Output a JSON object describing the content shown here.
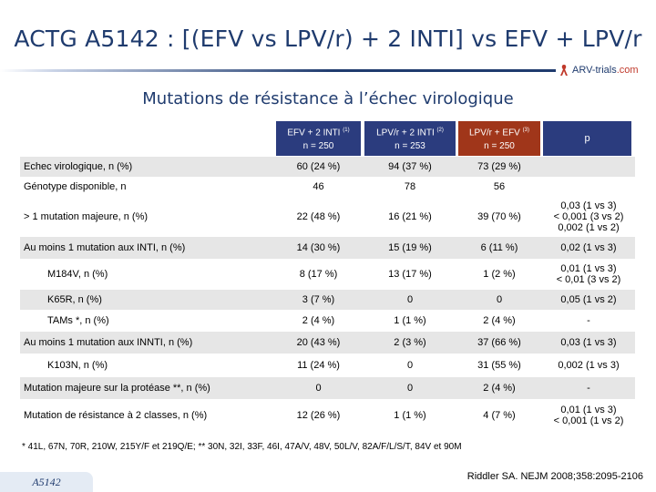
{
  "title": "ACTG A5142 : [(EFV vs LPV/r) + 2 INTI] vs EFV + LPV/r",
  "brand": {
    "name": "ARV-trials",
    "suffix": ".com"
  },
  "subtitle": "Mutations de résistance à l’échec virologique",
  "columns": [
    {
      "line1": "EFV + 2 INTI",
      "sup": "(1)",
      "line2": "n = 250"
    },
    {
      "line1": "LPV/r + 2 INTI",
      "sup": "(2)",
      "line2": "n = 253"
    },
    {
      "line1": "LPV/r + EFV",
      "sup": "(3)",
      "line2": "n = 250"
    },
    {
      "line1": "p"
    }
  ],
  "rows": [
    {
      "label": "Echec virologique, n (%)",
      "values": [
        "60 (24 %)",
        "94 (37 %)",
        "73 (29 %)"
      ],
      "p": [
        ""
      ]
    },
    {
      "label": "Génotype disponible, n",
      "values": [
        "46",
        "78",
        "56"
      ],
      "p": [
        ""
      ]
    },
    {
      "label": "> 1 mutation majeure, n (%)",
      "values": [
        "22 (48 %)",
        "16 (21 %)",
        "39 (70 %)"
      ],
      "p": [
        "0,03 (1 vs 3)",
        "< 0,001 (3 vs 2)",
        "0,002 (1 vs 2)"
      ]
    },
    {
      "label": "Au moins 1 mutation aux INTI, n (%)",
      "values": [
        "14 (30 %)",
        "15 (19 %)",
        "6 (11 %)"
      ],
      "p": [
        "0,02 (1 vs 3)"
      ]
    },
    {
      "label": "M184V, n (%)",
      "values": [
        "8 (17 %)",
        "13 (17 %)",
        "1 (2 %)"
      ],
      "p": [
        "0,01 (1 vs 3)",
        "< 0,01 (3 vs 2)"
      ]
    },
    {
      "label": "K65R, n (%)",
      "values": [
        "3 (7 %)",
        "0",
        "0"
      ],
      "p": [
        "0,05 (1 vs 2)"
      ]
    },
    {
      "label": "TAMs *, n (%)",
      "values": [
        "2 (4 %)",
        "1 (1 %)",
        "2 (4 %)"
      ],
      "p": [
        "-"
      ]
    },
    {
      "label": "Au moins 1 mutation aux INNTI, n (%)",
      "values": [
        "20 (43 %)",
        "2 (3 %)",
        "37 (66 %)"
      ],
      "p": [
        "0,03 (1 vs 3)"
      ]
    },
    {
      "label": "K103N, n (%)",
      "values": [
        "11 (24 %)",
        "0",
        "31 (55 %)"
      ],
      "p": [
        "0,002 (1 vs 3)"
      ]
    },
    {
      "label": "Mutation majeure sur la protéase **, n (%)",
      "values": [
        "0",
        "0",
        "2 (4 %)"
      ],
      "p": [
        "-"
      ]
    },
    {
      "label": "Mutation de résistance à 2 classes, n (%)",
      "values": [
        "12 (26 %)",
        "1 (1 %)",
        "4 (7 %)"
      ],
      "p": [
        "0,01 (1 vs 3)",
        "< 0,001 (1 vs 2)"
      ]
    }
  ],
  "footnote": "* 41L, 67N, 70R, 210W, 215Y/F et 219Q/E; ** 30N, 32I, 33F, 46I, 47A/V, 48V, 50L/V, 82A/F/L/S/T, 84V et 90M",
  "reference": "Riddler SA. NEJM 2008;358:2095-2106",
  "tag": "A5142",
  "colors": {
    "navy": "#1f3b6e",
    "header_blue": "#2b3c7e",
    "header_red": "#a0361a",
    "shade": "#e6e6e6"
  }
}
